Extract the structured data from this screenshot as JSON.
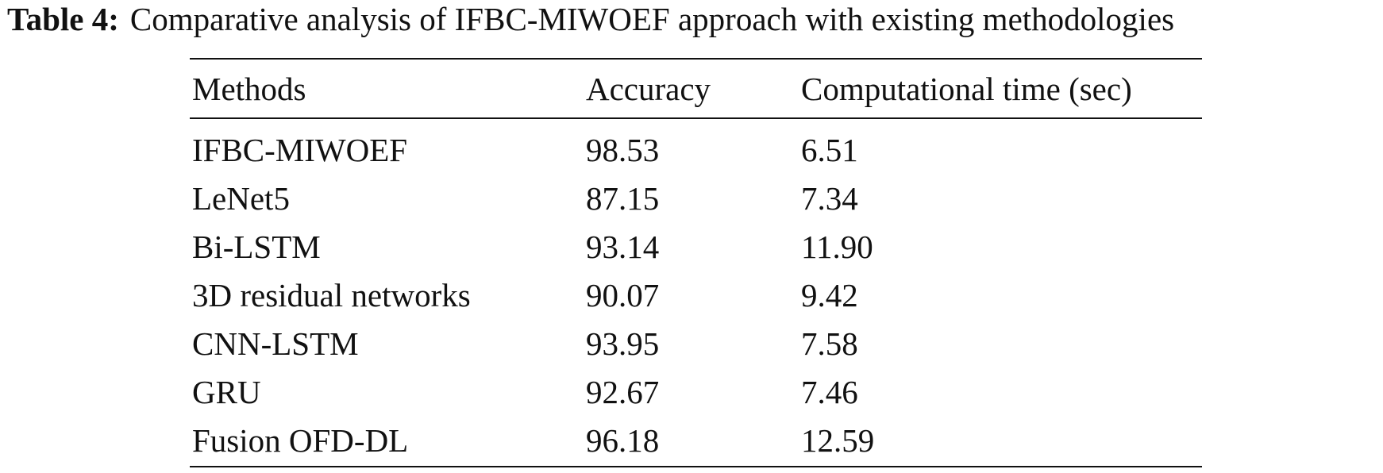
{
  "caption": {
    "label": "Table 4:",
    "text": "Comparative analysis of IFBC-MIWOEF approach with existing methodologies"
  },
  "table": {
    "header": [
      "Methods",
      "Accuracy",
      "Computational time (sec)"
    ],
    "rows": [
      [
        "IFBC-MIWOEF",
        "98.53",
        "6.51"
      ],
      [
        "LeNet5",
        "87.15",
        "7.34"
      ],
      [
        "Bi-LSTM",
        "93.14",
        "11.90"
      ],
      [
        "3D residual networks",
        "90.07",
        "9.42"
      ],
      [
        "CNN-LSTM",
        "93.95",
        "7.58"
      ],
      [
        "GRU",
        "92.67",
        "7.46"
      ],
      [
        "Fusion OFD-DL",
        "96.18",
        "12.59"
      ]
    ]
  }
}
